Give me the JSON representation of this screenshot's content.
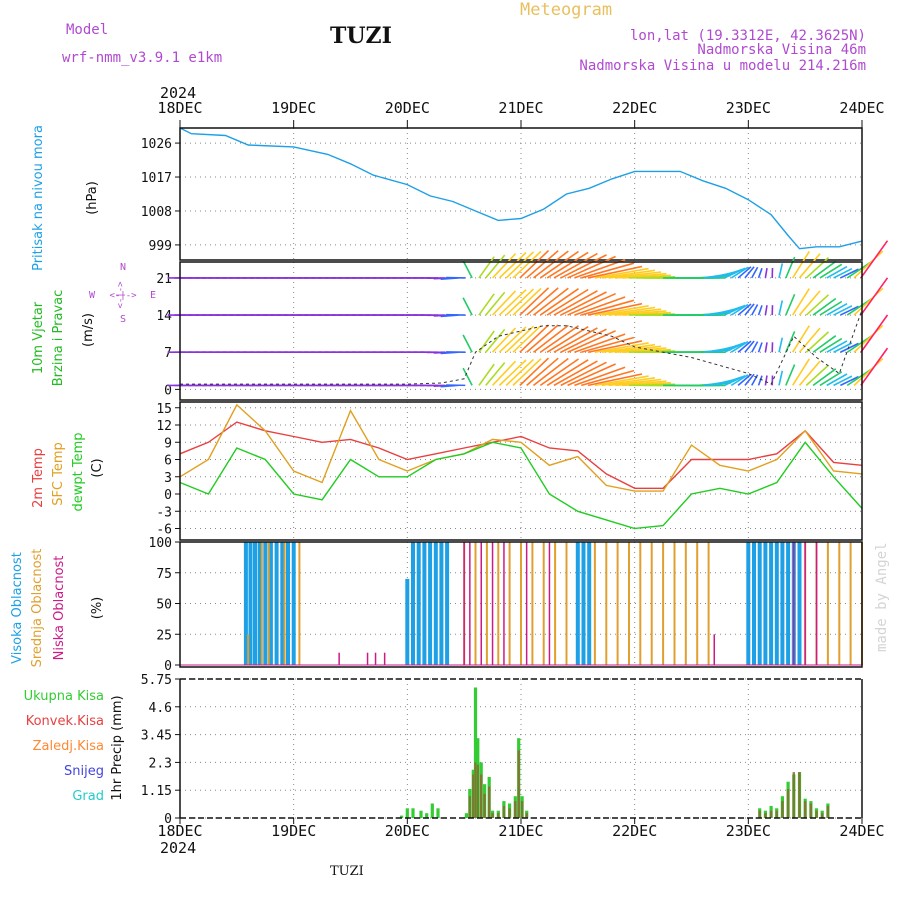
{
  "header": {
    "model_label": "Model",
    "model_name": "wrf-nmm_v3.9.1 e1km",
    "station": "TUZI",
    "meteogram": "Meteogram",
    "lonlat": "lon,lat (19.3312E, 42.3625N)",
    "altitude": "Nadmorska Visina 46m",
    "model_altitude": "Nadmorska Visina u modelu 214.216m",
    "footer_station": "TUZI",
    "watermark": "made by Angel"
  },
  "time_axis": {
    "year": "2024",
    "labels": [
      "18DEC",
      "19DEC",
      "20DEC",
      "21DEC",
      "22DEC",
      "23DEC",
      "24DEC"
    ],
    "day_count": 6
  },
  "colors": {
    "pressure": "#1ea0e6",
    "wind_label": "#22bb22",
    "t2m": "#e84040",
    "sfc": "#e0a020",
    "dewpt": "#22cc22",
    "high_cloud": "#1ea0e6",
    "mid_cloud": "#e0a030",
    "low_cloud": "#cc1a88",
    "total_precip": "#33cc33",
    "conv_precip": "#e84040",
    "frozen_precip": "#ff8833",
    "snow": "#4444dd",
    "grad": "#22cccc",
    "header_purple": "#b04ad0",
    "meteogram_gold": "#e8c060"
  },
  "chart_data": [
    {
      "type": "line",
      "name": "pressure",
      "title_lines": [
        "Pritisak na nivou mora"
      ],
      "unit": "(hPa)",
      "yticks": [
        999,
        1008,
        1017,
        1026
      ],
      "ylim": [
        995,
        1030
      ],
      "x_days": [
        0,
        0.1,
        0.4,
        0.6,
        1.0,
        1.3,
        1.5,
        1.7,
        2.0,
        2.2,
        2.4,
        2.6,
        2.8,
        3.0,
        3.2,
        3.4,
        3.6,
        3.8,
        4.0,
        4.2,
        4.4,
        4.6,
        4.8,
        5.0,
        5.2,
        5.35,
        5.45,
        5.6,
        5.8,
        6.0
      ],
      "series": [
        {
          "name": "Pritisak",
          "values": [
            1030,
            1028.5,
            1028,
            1025.5,
            1025,
            1023,
            1020.5,
            1017.5,
            1015,
            1012,
            1010.5,
            1008,
            1005.5,
            1006,
            1008.5,
            1012.5,
            1014,
            1016.5,
            1018.5,
            1018.5,
            1018.5,
            1016,
            1014,
            1011,
            1007,
            1001.5,
            998,
            998.5,
            998.5,
            1000
          ]
        }
      ]
    },
    {
      "type": "scatter",
      "name": "wind",
      "title_lines": [
        "10m Vjetar",
        "Brzina i Pravac"
      ],
      "unit": "(m/s)",
      "yticks": [
        0,
        7,
        14,
        21
      ],
      "ylim": [
        -2,
        24
      ],
      "compass": {
        "n": "N",
        "s": "S",
        "e": "E",
        "w": "W",
        "arrow": "<-|->"
      },
      "x_days": [
        0,
        0.5,
        1.0,
        1.5,
        2.0,
        2.3,
        2.5,
        2.6,
        2.8,
        3.0,
        3.2,
        3.4,
        3.6,
        3.8,
        4.0,
        4.5,
        5.0,
        5.2,
        5.4,
        5.6,
        5.8,
        6.0
      ],
      "speed": [
        1,
        1,
        1,
        1,
        1,
        1.2,
        2,
        7,
        10,
        11,
        12,
        12,
        11,
        10,
        8,
        6,
        3,
        1,
        10,
        6,
        3,
        15
      ],
      "direction_deg": [
        90,
        90,
        90,
        90,
        90,
        90,
        80,
        200,
        210,
        210,
        220,
        230,
        250,
        260,
        270,
        270,
        200,
        180,
        200,
        220,
        230,
        200
      ]
    },
    {
      "type": "line",
      "name": "temperature",
      "title_lines": [
        "2m Temp",
        "SFC Temp",
        "dewpt Temp"
      ],
      "unit": "(C)",
      "yticks": [
        -6,
        -3,
        0,
        3,
        6,
        9,
        12,
        15
      ],
      "ylim": [
        -8,
        16
      ],
      "x_days": [
        0,
        0.25,
        0.5,
        0.75,
        1.0,
        1.25,
        1.5,
        1.75,
        2.0,
        2.25,
        2.5,
        2.75,
        3.0,
        3.25,
        3.5,
        3.75,
        4.0,
        4.25,
        4.5,
        4.75,
        5.0,
        5.25,
        5.5,
        5.75,
        6.0
      ],
      "series": [
        {
          "name": "2m Temp",
          "values": [
            7,
            9,
            12.5,
            11,
            10,
            9,
            9.5,
            8,
            6,
            7,
            8,
            9,
            10,
            8,
            7.5,
            3.5,
            1,
            1,
            6,
            6,
            6,
            7,
            11,
            5.5,
            5
          ]
        },
        {
          "name": "SFC Temp",
          "values": [
            3,
            6,
            15.5,
            11,
            4,
            2,
            14.5,
            6,
            4,
            6,
            7,
            9.5,
            9,
            5,
            6.5,
            1.5,
            0.5,
            0.5,
            8.5,
            5,
            4,
            6,
            11,
            4,
            3.5
          ]
        },
        {
          "name": "dewpt Temp",
          "values": [
            2,
            0,
            8,
            6,
            0,
            -1,
            6,
            3,
            3,
            6,
            7,
            9,
            8,
            0,
            -3,
            -4.5,
            -6,
            -5.5,
            0,
            1,
            0,
            2,
            9,
            3,
            -2.5
          ]
        }
      ]
    },
    {
      "type": "bar",
      "name": "clouds",
      "title_lines": [
        "Visoka Oblacnost",
        "Srednja Oblacnost",
        "Niska Oblacnost"
      ],
      "unit": "(%)",
      "yticks": [
        0,
        25,
        50,
        75,
        100
      ],
      "ylim": [
        0,
        100
      ],
      "series": [
        {
          "name": "Visoka Oblacnost",
          "x_days": [
            0.58,
            0.62,
            0.66,
            0.7,
            0.75,
            0.8,
            0.85,
            0.9,
            0.95,
            1.0,
            2.0,
            2.05,
            2.1,
            2.15,
            2.2,
            2.25,
            2.3,
            2.35,
            3.5,
            3.55,
            3.6,
            5.0,
            5.05,
            5.1,
            5.15,
            5.2,
            5.25,
            5.3,
            5.35,
            5.4,
            5.45
          ],
          "values": [
            100,
            100,
            100,
            100,
            100,
            100,
            100,
            100,
            100,
            100,
            70,
            100,
            100,
            100,
            100,
            100,
            100,
            100,
            100,
            100,
            100,
            100,
            100,
            100,
            100,
            100,
            100,
            100,
            100,
            100,
            100
          ]
        },
        {
          "name": "Srednja Oblacnost",
          "x_days": [
            0.6,
            0.72,
            0.78,
            0.92,
            1.05,
            2.5,
            2.6,
            2.7,
            2.8,
            2.9,
            3.0,
            3.1,
            3.2,
            3.3,
            3.4,
            3.65,
            3.75,
            3.85,
            3.95,
            4.05,
            4.15,
            4.25,
            4.35,
            4.45,
            4.55,
            4.65,
            5.5,
            5.6,
            5.7,
            5.8,
            5.9,
            6.0
          ],
          "values": [
            25,
            100,
            100,
            100,
            100,
            100,
            100,
            100,
            100,
            100,
            100,
            100,
            100,
            100,
            100,
            100,
            100,
            100,
            100,
            100,
            100,
            100,
            100,
            100,
            100,
            100,
            100,
            100,
            100,
            100,
            100,
            100
          ]
        },
        {
          "name": "Niska Oblacnost",
          "x_days": [
            1.4,
            1.65,
            1.72,
            1.8,
            2.5,
            2.55,
            2.65,
            2.75,
            2.85,
            3.05,
            3.25,
            4.7,
            5.4,
            5.5,
            5.6
          ],
          "values": [
            10,
            10,
            10,
            10,
            100,
            100,
            100,
            100,
            100,
            100,
            100,
            25,
            100,
            100,
            100
          ]
        }
      ]
    },
    {
      "type": "bar",
      "name": "precip",
      "title_lines": [
        "1hr Precip",
        "(mm)"
      ],
      "legend": [
        "Ukupna Kisa",
        "Konvek.Kisa",
        "Zaledj.Kisa",
        "Snijeg",
        "Grad"
      ],
      "yticks": [
        0,
        1.15,
        2.3,
        3.45,
        4.6,
        5.75
      ],
      "ytick_labels": [
        "0",
        "1.15",
        "2.3",
        "3.45",
        "4.6",
        "5.75"
      ],
      "ylim": [
        0,
        5.75
      ],
      "x_days": [
        1.95,
        2.0,
        2.05,
        2.12,
        2.17,
        2.22,
        2.27,
        2.52,
        2.55,
        2.58,
        2.6,
        2.62,
        2.65,
        2.68,
        2.72,
        2.75,
        2.8,
        2.85,
        2.9,
        2.95,
        2.98,
        3.01,
        3.05,
        5.1,
        5.15,
        5.2,
        5.25,
        5.3,
        5.35,
        5.4,
        5.45,
        5.5,
        5.55,
        5.6,
        5.65,
        5.7
      ],
      "series": [
        {
          "name": "Ukupna Kisa",
          "values": [
            0.1,
            0.4,
            0.4,
            0.3,
            0.2,
            0.6,
            0.4,
            0.2,
            1.2,
            2,
            5.4,
            3.3,
            2.3,
            1.4,
            1.7,
            0.3,
            0.3,
            0.7,
            0.6,
            0.9,
            3.3,
            0.9,
            0.3,
            0.4,
            0.3,
            0.5,
            0.4,
            0.9,
            1.5,
            1.8,
            1.9,
            0.8,
            0.7,
            0.4,
            0.3,
            0.6
          ]
        },
        {
          "name": "Konvek.Kisa",
          "values": [
            0,
            0,
            0,
            0,
            0,
            0,
            0,
            0,
            0.9,
            1.8,
            2.3,
            2.2,
            1.8,
            1,
            1.3,
            0.2,
            0.2,
            0.5,
            0.4,
            0.7,
            2.8,
            0.7,
            0.2,
            0.3,
            0.2,
            0.3,
            0.3,
            0.7,
            1.2,
            1.9,
            1.9,
            0.7,
            0.6,
            0.3,
            0.2,
            0.5
          ]
        }
      ]
    }
  ]
}
